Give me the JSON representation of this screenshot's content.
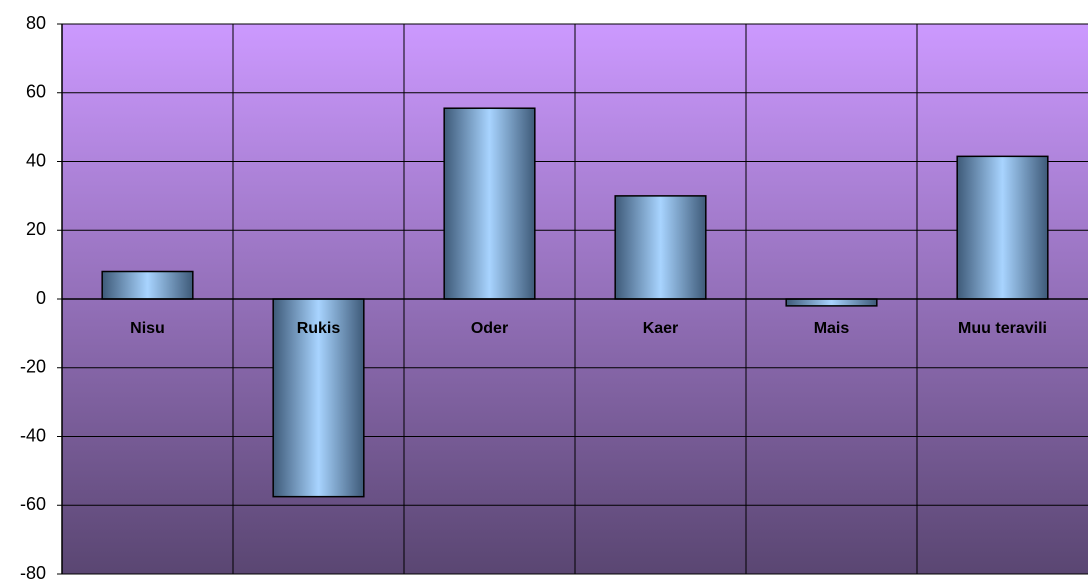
{
  "chart_data": {
    "type": "bar",
    "title": "",
    "xlabel": "",
    "ylabel": "",
    "categories": [
      "Nisu",
      "Rukis",
      "Oder",
      "Kaer",
      "Mais",
      "Muu teravili"
    ],
    "values": [
      8,
      -57.5,
      55.5,
      30,
      -2,
      41.5
    ],
    "ylim": [
      -80,
      80
    ],
    "yticks": [
      80,
      60,
      40,
      20,
      0,
      -20,
      -40,
      -60,
      -80
    ],
    "yticklabels": [
      "80",
      "60",
      "40",
      "20",
      "0",
      "-20",
      "-40",
      "-60",
      "-80"
    ],
    "grid": true,
    "legend": "none",
    "colors": {
      "plot_top": "#cc99ff",
      "plot_bottom": "#5a4672",
      "bar_edge": "#3e5a78",
      "bar_mid": "#a8d4ff",
      "gridline": "#000000",
      "bar_outline": "#000000"
    }
  }
}
